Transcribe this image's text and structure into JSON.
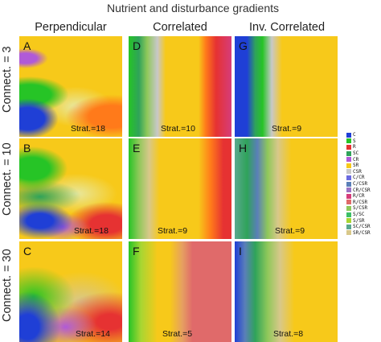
{
  "title": "Nutrient and disturbance gradients",
  "columns": [
    "Perpendicular",
    "Correlated",
    "Inv. Correlated"
  ],
  "rows": [
    "Connect. = 3",
    "Connect. = 10",
    "Connect. = 30"
  ],
  "panels": [
    {
      "label": "A",
      "strat": "Strat.=18"
    },
    {
      "label": "D",
      "strat": "Strat.=10"
    },
    {
      "label": "G",
      "strat": "Strat.=9"
    },
    {
      "label": "B",
      "strat": "Strat.=18"
    },
    {
      "label": "E",
      "strat": "Strat.=9"
    },
    {
      "label": "H",
      "strat": "Strat.=9"
    },
    {
      "label": "C",
      "strat": "Strat.=14"
    },
    {
      "label": "F",
      "strat": "Strat.=5"
    },
    {
      "label": "I",
      "strat": "Strat.=8"
    }
  ],
  "legend": [
    {
      "label": "C",
      "color": "#1f3fd6"
    },
    {
      "label": "S",
      "color": "#26c426"
    },
    {
      "label": "R",
      "color": "#e63232"
    },
    {
      "label": "SC",
      "color": "#2fa35a"
    },
    {
      "label": "CR",
      "color": "#b05ad8"
    },
    {
      "label": "SR",
      "color": "#f7c91a"
    },
    {
      "label": "CSR",
      "color": "#c8c8c8"
    },
    {
      "label": "C/CR",
      "color": "#6a6ae0"
    },
    {
      "label": "C/CSR",
      "color": "#5a7fb8"
    },
    {
      "label": "CR/CSR",
      "color": "#9b74c4"
    },
    {
      "label": "R/CR",
      "color": "#d63c7a"
    },
    {
      "label": "R/CSR",
      "color": "#e06a6a"
    },
    {
      "label": "S/CSR",
      "color": "#8fc85a"
    },
    {
      "label": "S/SC",
      "color": "#3cbf66"
    },
    {
      "label": "S/SR",
      "color": "#a8d632"
    },
    {
      "label": "SC/CSR",
      "color": "#5aa88f"
    },
    {
      "label": "SR/CSR",
      "color": "#d8c88a"
    }
  ]
}
